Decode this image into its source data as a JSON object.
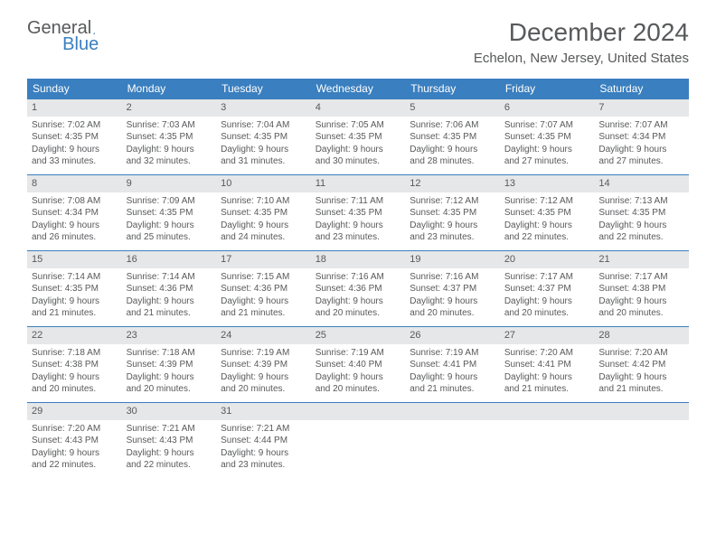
{
  "logo": {
    "text1": "General",
    "text2": "Blue"
  },
  "title": "December 2024",
  "location": "Echelon, New Jersey, United States",
  "colors": {
    "header_bg": "#3a7fbf",
    "header_text": "#ffffff",
    "daynum_bg": "#e6e7e8",
    "border": "#3a7fbf",
    "text": "#58595b",
    "page_bg": "#ffffff"
  },
  "day_headers": [
    "Sunday",
    "Monday",
    "Tuesday",
    "Wednesday",
    "Thursday",
    "Friday",
    "Saturday"
  ],
  "weeks": [
    [
      {
        "day": "1",
        "sunrise": "Sunrise: 7:02 AM",
        "sunset": "Sunset: 4:35 PM",
        "dl1": "Daylight: 9 hours",
        "dl2": "and 33 minutes."
      },
      {
        "day": "2",
        "sunrise": "Sunrise: 7:03 AM",
        "sunset": "Sunset: 4:35 PM",
        "dl1": "Daylight: 9 hours",
        "dl2": "and 32 minutes."
      },
      {
        "day": "3",
        "sunrise": "Sunrise: 7:04 AM",
        "sunset": "Sunset: 4:35 PM",
        "dl1": "Daylight: 9 hours",
        "dl2": "and 31 minutes."
      },
      {
        "day": "4",
        "sunrise": "Sunrise: 7:05 AM",
        "sunset": "Sunset: 4:35 PM",
        "dl1": "Daylight: 9 hours",
        "dl2": "and 30 minutes."
      },
      {
        "day": "5",
        "sunrise": "Sunrise: 7:06 AM",
        "sunset": "Sunset: 4:35 PM",
        "dl1": "Daylight: 9 hours",
        "dl2": "and 28 minutes."
      },
      {
        "day": "6",
        "sunrise": "Sunrise: 7:07 AM",
        "sunset": "Sunset: 4:35 PM",
        "dl1": "Daylight: 9 hours",
        "dl2": "and 27 minutes."
      },
      {
        "day": "7",
        "sunrise": "Sunrise: 7:07 AM",
        "sunset": "Sunset: 4:34 PM",
        "dl1": "Daylight: 9 hours",
        "dl2": "and 27 minutes."
      }
    ],
    [
      {
        "day": "8",
        "sunrise": "Sunrise: 7:08 AM",
        "sunset": "Sunset: 4:34 PM",
        "dl1": "Daylight: 9 hours",
        "dl2": "and 26 minutes."
      },
      {
        "day": "9",
        "sunrise": "Sunrise: 7:09 AM",
        "sunset": "Sunset: 4:35 PM",
        "dl1": "Daylight: 9 hours",
        "dl2": "and 25 minutes."
      },
      {
        "day": "10",
        "sunrise": "Sunrise: 7:10 AM",
        "sunset": "Sunset: 4:35 PM",
        "dl1": "Daylight: 9 hours",
        "dl2": "and 24 minutes."
      },
      {
        "day": "11",
        "sunrise": "Sunrise: 7:11 AM",
        "sunset": "Sunset: 4:35 PM",
        "dl1": "Daylight: 9 hours",
        "dl2": "and 23 minutes."
      },
      {
        "day": "12",
        "sunrise": "Sunrise: 7:12 AM",
        "sunset": "Sunset: 4:35 PM",
        "dl1": "Daylight: 9 hours",
        "dl2": "and 23 minutes."
      },
      {
        "day": "13",
        "sunrise": "Sunrise: 7:12 AM",
        "sunset": "Sunset: 4:35 PM",
        "dl1": "Daylight: 9 hours",
        "dl2": "and 22 minutes."
      },
      {
        "day": "14",
        "sunrise": "Sunrise: 7:13 AM",
        "sunset": "Sunset: 4:35 PM",
        "dl1": "Daylight: 9 hours",
        "dl2": "and 22 minutes."
      }
    ],
    [
      {
        "day": "15",
        "sunrise": "Sunrise: 7:14 AM",
        "sunset": "Sunset: 4:35 PM",
        "dl1": "Daylight: 9 hours",
        "dl2": "and 21 minutes."
      },
      {
        "day": "16",
        "sunrise": "Sunrise: 7:14 AM",
        "sunset": "Sunset: 4:36 PM",
        "dl1": "Daylight: 9 hours",
        "dl2": "and 21 minutes."
      },
      {
        "day": "17",
        "sunrise": "Sunrise: 7:15 AM",
        "sunset": "Sunset: 4:36 PM",
        "dl1": "Daylight: 9 hours",
        "dl2": "and 21 minutes."
      },
      {
        "day": "18",
        "sunrise": "Sunrise: 7:16 AM",
        "sunset": "Sunset: 4:36 PM",
        "dl1": "Daylight: 9 hours",
        "dl2": "and 20 minutes."
      },
      {
        "day": "19",
        "sunrise": "Sunrise: 7:16 AM",
        "sunset": "Sunset: 4:37 PM",
        "dl1": "Daylight: 9 hours",
        "dl2": "and 20 minutes."
      },
      {
        "day": "20",
        "sunrise": "Sunrise: 7:17 AM",
        "sunset": "Sunset: 4:37 PM",
        "dl1": "Daylight: 9 hours",
        "dl2": "and 20 minutes."
      },
      {
        "day": "21",
        "sunrise": "Sunrise: 7:17 AM",
        "sunset": "Sunset: 4:38 PM",
        "dl1": "Daylight: 9 hours",
        "dl2": "and 20 minutes."
      }
    ],
    [
      {
        "day": "22",
        "sunrise": "Sunrise: 7:18 AM",
        "sunset": "Sunset: 4:38 PM",
        "dl1": "Daylight: 9 hours",
        "dl2": "and 20 minutes."
      },
      {
        "day": "23",
        "sunrise": "Sunrise: 7:18 AM",
        "sunset": "Sunset: 4:39 PM",
        "dl1": "Daylight: 9 hours",
        "dl2": "and 20 minutes."
      },
      {
        "day": "24",
        "sunrise": "Sunrise: 7:19 AM",
        "sunset": "Sunset: 4:39 PM",
        "dl1": "Daylight: 9 hours",
        "dl2": "and 20 minutes."
      },
      {
        "day": "25",
        "sunrise": "Sunrise: 7:19 AM",
        "sunset": "Sunset: 4:40 PM",
        "dl1": "Daylight: 9 hours",
        "dl2": "and 20 minutes."
      },
      {
        "day": "26",
        "sunrise": "Sunrise: 7:19 AM",
        "sunset": "Sunset: 4:41 PM",
        "dl1": "Daylight: 9 hours",
        "dl2": "and 21 minutes."
      },
      {
        "day": "27",
        "sunrise": "Sunrise: 7:20 AM",
        "sunset": "Sunset: 4:41 PM",
        "dl1": "Daylight: 9 hours",
        "dl2": "and 21 minutes."
      },
      {
        "day": "28",
        "sunrise": "Sunrise: 7:20 AM",
        "sunset": "Sunset: 4:42 PM",
        "dl1": "Daylight: 9 hours",
        "dl2": "and 21 minutes."
      }
    ],
    [
      {
        "day": "29",
        "sunrise": "Sunrise: 7:20 AM",
        "sunset": "Sunset: 4:43 PM",
        "dl1": "Daylight: 9 hours",
        "dl2": "and 22 minutes."
      },
      {
        "day": "30",
        "sunrise": "Sunrise: 7:21 AM",
        "sunset": "Sunset: 4:43 PM",
        "dl1": "Daylight: 9 hours",
        "dl2": "and 22 minutes."
      },
      {
        "day": "31",
        "sunrise": "Sunrise: 7:21 AM",
        "sunset": "Sunset: 4:44 PM",
        "dl1": "Daylight: 9 hours",
        "dl2": "and 23 minutes."
      },
      null,
      null,
      null,
      null
    ]
  ]
}
